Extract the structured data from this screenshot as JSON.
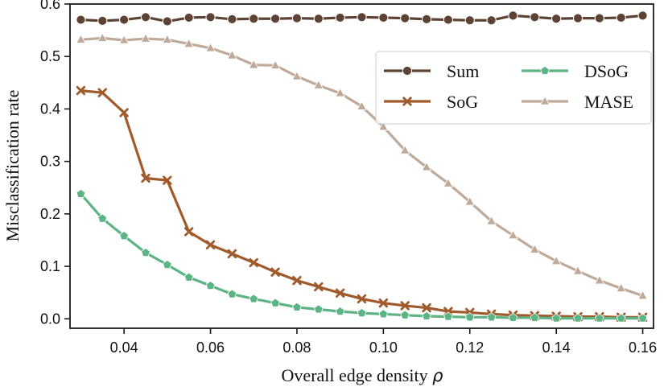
{
  "chart_data": {
    "type": "line",
    "xlabel": "Overall edge density",
    "xlabel_symbol": "ρ",
    "ylabel": "Misclassification rate",
    "xlim": [
      0.0275,
      0.1625
    ],
    "ylim": [
      -0.018,
      0.6
    ],
    "xticks": [
      0.04,
      0.06,
      0.08,
      0.1,
      0.12,
      0.14,
      0.16
    ],
    "xtick_labels": [
      "0.04",
      "0.06",
      "0.08",
      "0.10",
      "0.12",
      "0.14",
      "0.16"
    ],
    "yticks": [
      0.0,
      0.1,
      0.2,
      0.3,
      0.4,
      0.5,
      0.6
    ],
    "ytick_labels": [
      "0.0",
      "0.1",
      "0.2",
      "0.3",
      "0.4",
      "0.5",
      "0.6"
    ],
    "x": [
      0.03,
      0.035,
      0.04,
      0.045,
      0.05,
      0.055,
      0.06,
      0.065,
      0.07,
      0.075,
      0.08,
      0.085,
      0.09,
      0.095,
      0.1,
      0.105,
      0.11,
      0.115,
      0.12,
      0.125,
      0.13,
      0.135,
      0.14,
      0.145,
      0.15,
      0.155,
      0.16
    ],
    "legend_position": "top-right",
    "series": [
      {
        "name": "Sum",
        "color": "#5c4334",
        "marker": "circle",
        "values": [
          0.57,
          0.568,
          0.57,
          0.575,
          0.567,
          0.574,
          0.575,
          0.571,
          0.572,
          0.572,
          0.573,
          0.572,
          0.574,
          0.575,
          0.574,
          0.573,
          0.571,
          0.57,
          0.569,
          0.569,
          0.578,
          0.575,
          0.572,
          0.573,
          0.573,
          0.574,
          0.578
        ]
      },
      {
        "name": "SoG",
        "color": "#a05a2c",
        "marker": "x",
        "values": [
          0.435,
          0.431,
          0.393,
          0.268,
          0.264,
          0.166,
          0.141,
          0.124,
          0.107,
          0.089,
          0.073,
          0.061,
          0.049,
          0.038,
          0.03,
          0.025,
          0.021,
          0.014,
          0.012,
          0.009,
          0.007,
          0.006,
          0.005,
          0.004,
          0.004,
          0.003,
          0.003
        ]
      },
      {
        "name": "DSoG",
        "color": "#5cb484",
        "marker": "pentagon",
        "values": [
          0.238,
          0.191,
          0.158,
          0.126,
          0.103,
          0.079,
          0.063,
          0.047,
          0.038,
          0.03,
          0.022,
          0.018,
          0.014,
          0.011,
          0.009,
          0.007,
          0.005,
          0.004,
          0.003,
          0.003,
          0.002,
          0.002,
          0.001,
          0.001,
          0.001,
          0.001,
          0.001
        ]
      },
      {
        "name": "MASE",
        "color": "#bfaa9a",
        "marker": "triangle",
        "values": [
          0.532,
          0.535,
          0.531,
          0.534,
          0.532,
          0.524,
          0.516,
          0.502,
          0.484,
          0.483,
          0.462,
          0.445,
          0.43,
          0.405,
          0.366,
          0.321,
          0.289,
          0.258,
          0.223,
          0.186,
          0.159,
          0.132,
          0.11,
          0.091,
          0.073,
          0.058,
          0.044
        ]
      }
    ]
  }
}
